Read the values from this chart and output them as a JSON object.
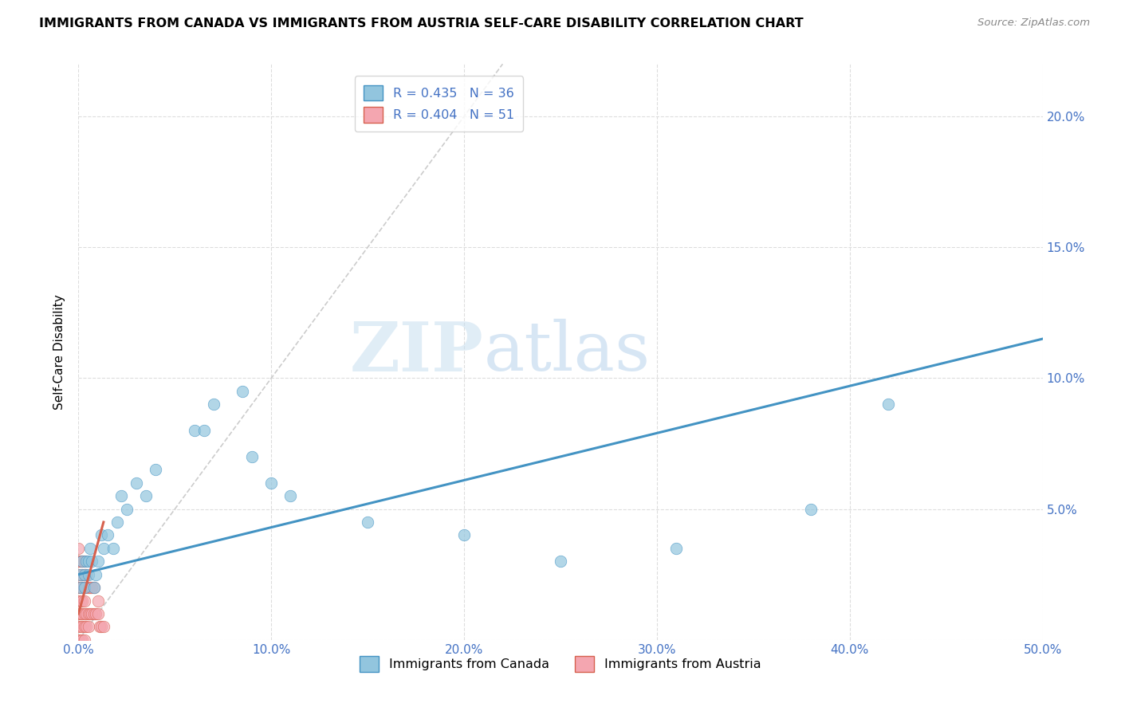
{
  "title": "IMMIGRANTS FROM CANADA VS IMMIGRANTS FROM AUSTRIA SELF-CARE DISABILITY CORRELATION CHART",
  "source": "Source: ZipAtlas.com",
  "ylabel": "Self-Care Disability",
  "xlim": [
    0,
    0.5
  ],
  "ylim": [
    0,
    0.22
  ],
  "xticks": [
    0.0,
    0.1,
    0.2,
    0.3,
    0.4,
    0.5
  ],
  "xticklabels": [
    "0.0%",
    "10.0%",
    "20.0%",
    "30.0%",
    "40.0%",
    "50.0%"
  ],
  "yticks": [
    0.0,
    0.05,
    0.1,
    0.15,
    0.2
  ],
  "yticklabels": [
    "",
    "5.0%",
    "10.0%",
    "15.0%",
    "20.0%"
  ],
  "canada_color": "#92c5de",
  "austria_color": "#f4a6b0",
  "trendline_canada_color": "#4393c3",
  "trendline_austria_color": "#d6604d",
  "ref_line_color": "#cccccc",
  "legend_R_canada": "R = 0.435",
  "legend_N_canada": "N = 36",
  "legend_R_austria": "R = 0.404",
  "legend_N_austria": "N = 51",
  "watermark_zip": "ZIP",
  "watermark_atlas": "atlas",
  "canada_x": [
    0.001,
    0.001,
    0.002,
    0.003,
    0.003,
    0.004,
    0.005,
    0.005,
    0.006,
    0.007,
    0.008,
    0.009,
    0.01,
    0.012,
    0.013,
    0.015,
    0.018,
    0.02,
    0.022,
    0.025,
    0.03,
    0.035,
    0.04,
    0.06,
    0.065,
    0.07,
    0.085,
    0.09,
    0.1,
    0.11,
    0.15,
    0.2,
    0.25,
    0.31,
    0.38,
    0.42
  ],
  "canada_y": [
    0.02,
    0.025,
    0.03,
    0.02,
    0.025,
    0.03,
    0.025,
    0.03,
    0.035,
    0.03,
    0.02,
    0.025,
    0.03,
    0.04,
    0.035,
    0.04,
    0.035,
    0.045,
    0.055,
    0.05,
    0.06,
    0.055,
    0.065,
    0.08,
    0.08,
    0.09,
    0.095,
    0.07,
    0.06,
    0.055,
    0.045,
    0.04,
    0.03,
    0.035,
    0.05,
    0.09
  ],
  "austria_x": [
    0.0,
    0.0,
    0.0,
    0.0,
    0.0,
    0.0,
    0.0,
    0.0,
    0.0,
    0.0,
    0.0,
    0.0,
    0.001,
    0.001,
    0.001,
    0.001,
    0.001,
    0.001,
    0.002,
    0.002,
    0.002,
    0.002,
    0.002,
    0.002,
    0.002,
    0.003,
    0.003,
    0.003,
    0.003,
    0.003,
    0.003,
    0.003,
    0.004,
    0.004,
    0.004,
    0.004,
    0.005,
    0.005,
    0.005,
    0.006,
    0.006,
    0.007,
    0.007,
    0.008,
    0.008,
    0.009,
    0.01,
    0.01,
    0.011,
    0.012,
    0.013
  ],
  "austria_y": [
    0.0,
    0.0,
    0.005,
    0.01,
    0.01,
    0.015,
    0.02,
    0.02,
    0.025,
    0.03,
    0.03,
    0.035,
    0.0,
    0.005,
    0.01,
    0.015,
    0.02,
    0.03,
    0.0,
    0.005,
    0.01,
    0.015,
    0.02,
    0.025,
    0.03,
    0.0,
    0.005,
    0.01,
    0.015,
    0.02,
    0.025,
    0.03,
    0.005,
    0.01,
    0.02,
    0.025,
    0.005,
    0.01,
    0.02,
    0.01,
    0.02,
    0.01,
    0.02,
    0.01,
    0.02,
    0.01,
    0.01,
    0.015,
    0.005,
    0.005,
    0.005
  ],
  "canada_trendline_x": [
    0.0,
    0.5
  ],
  "canada_trendline_y": [
    0.025,
    0.115
  ],
  "austria_trendline_x": [
    0.0,
    0.013
  ],
  "austria_trendline_y": [
    0.01,
    0.045
  ],
  "ref_line_x": [
    0.0,
    0.22
  ],
  "ref_line_y": [
    0.0,
    0.22
  ]
}
